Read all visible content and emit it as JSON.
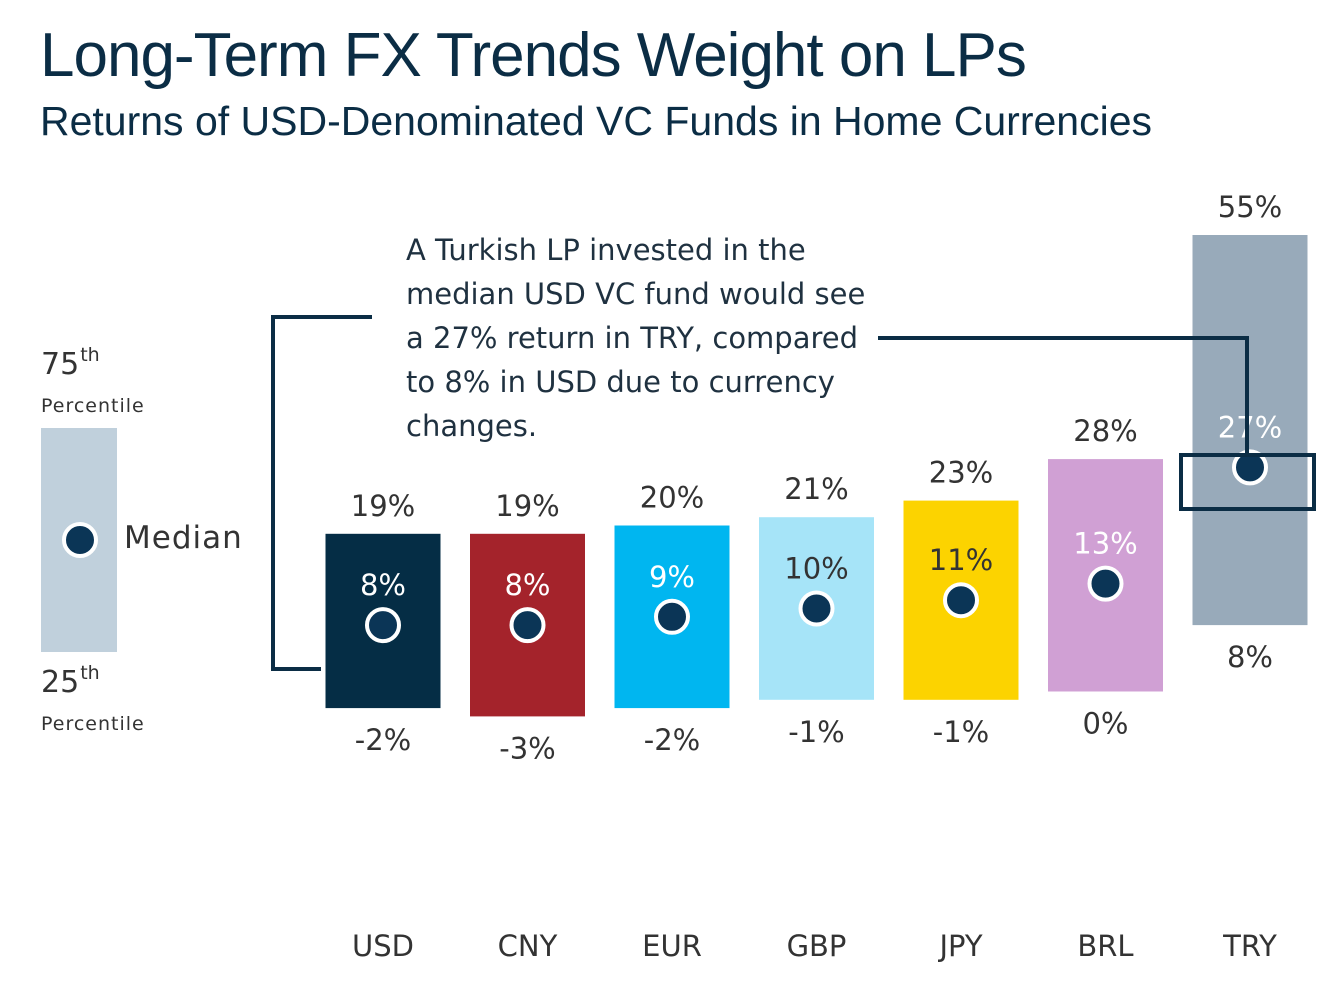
{
  "title": "Long-Term FX Trends Weight on LPs",
  "subtitle": "Returns of USD-Denominated VC Funds in Home Currencies",
  "callout": "A Turkish LP invested in the median USD VC fund would see a 27% return in TRY, compared to 8% in USD due to currency changes.",
  "legend": {
    "upper_num": "75",
    "upper_sup": "th",
    "upper_label": "Percentile",
    "lower_num": "25",
    "lower_sup": "th",
    "lower_label": "Percentile",
    "median_label": "Median",
    "box_color": "#c0d0dc"
  },
  "chart_data": {
    "type": "box-range",
    "title": "Long-Term FX Trends Weight on LPs",
    "subtitle": "Returns of USD-Denominated VC Funds in Home Currencies",
    "categories": [
      "USD",
      "CNY",
      "EUR",
      "GBP",
      "JPY",
      "BRL",
      "TRY"
    ],
    "series": [
      {
        "name": "75th Percentile",
        "values": [
          19,
          19,
          20,
          21,
          23,
          28,
          55
        ]
      },
      {
        "name": "Median",
        "values": [
          8,
          8,
          9,
          10,
          11,
          13,
          27
        ]
      },
      {
        "name": "25th Percentile",
        "values": [
          -2,
          -3,
          -2,
          -1,
          -1,
          0,
          8
        ]
      }
    ],
    "labels": {
      "p75": [
        "19%",
        "19%",
        "20%",
        "21%",
        "23%",
        "28%",
        "55%"
      ],
      "median": [
        "8%",
        "8%",
        "9%",
        "10%",
        "11%",
        "13%",
        "27%"
      ],
      "p25": [
        "-2%",
        "-3%",
        "-2%",
        "-1%",
        "-1%",
        "0%",
        "8%"
      ]
    },
    "colors": [
      "#052d45",
      "#a4232b",
      "#00b6f0",
      "#a6e4f8",
      "#fcd300",
      "#d0a0d4",
      "#98aaba"
    ],
    "median_text_colors": [
      "#ffffff",
      "#ffffff",
      "#ffffff",
      "#333333",
      "#333333",
      "#ffffff",
      "#ffffff"
    ],
    "highlight": "TRY"
  }
}
